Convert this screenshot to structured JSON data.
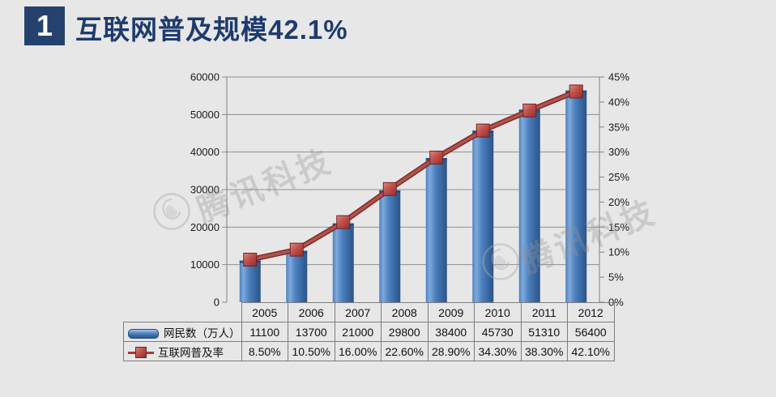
{
  "header": {
    "number": "1",
    "title": "互联网普及规模42.1%"
  },
  "watermark": {
    "text": "腾讯科技"
  },
  "chart_data": {
    "type": "bar+line combo",
    "title": "互联网普及规模42.1%",
    "categories": [
      "2005",
      "2006",
      "2007",
      "2008",
      "2009",
      "2010",
      "2011",
      "2012"
    ],
    "series": [
      {
        "name": "网民数（万人）",
        "type": "bar",
        "axis": "left",
        "values": [
          11100,
          13700,
          21000,
          29800,
          38400,
          45730,
          51310,
          56400
        ],
        "labels": [
          "11100",
          "13700",
          "21000",
          "29800",
          "38400",
          "45730",
          "51310",
          "56400"
        ],
        "color": "#4678b3"
      },
      {
        "name": "互联网普及率",
        "type": "line",
        "axis": "right",
        "values": [
          8.5,
          10.5,
          16.0,
          22.6,
          28.9,
          34.3,
          38.3,
          42.1
        ],
        "labels": [
          "8.50%",
          "10.50%",
          "16.00%",
          "22.60%",
          "28.90%",
          "34.30%",
          "38.30%",
          "42.10%"
        ],
        "color": "#a03c38"
      }
    ],
    "left_axis": {
      "min": 0,
      "max": 60000,
      "step": 10000,
      "labels": [
        "0",
        "10000",
        "20000",
        "30000",
        "40000",
        "50000",
        "60000"
      ]
    },
    "right_axis": {
      "min": 0,
      "max": 45,
      "step": 5,
      "labels": [
        "0%",
        "5%",
        "10%",
        "15%",
        "20%",
        "25%",
        "30%",
        "35%",
        "40%",
        "45%"
      ]
    },
    "grid": true,
    "legend_position": "table-left"
  },
  "colors": {
    "background": "#e7e7e7",
    "accent_navy": "#25426e",
    "bar_blue": "#4678b3",
    "line_red": "#a03c38",
    "gridline": "#8f8f8f",
    "axis": "#808080",
    "table_border": "#7d7d7d"
  }
}
